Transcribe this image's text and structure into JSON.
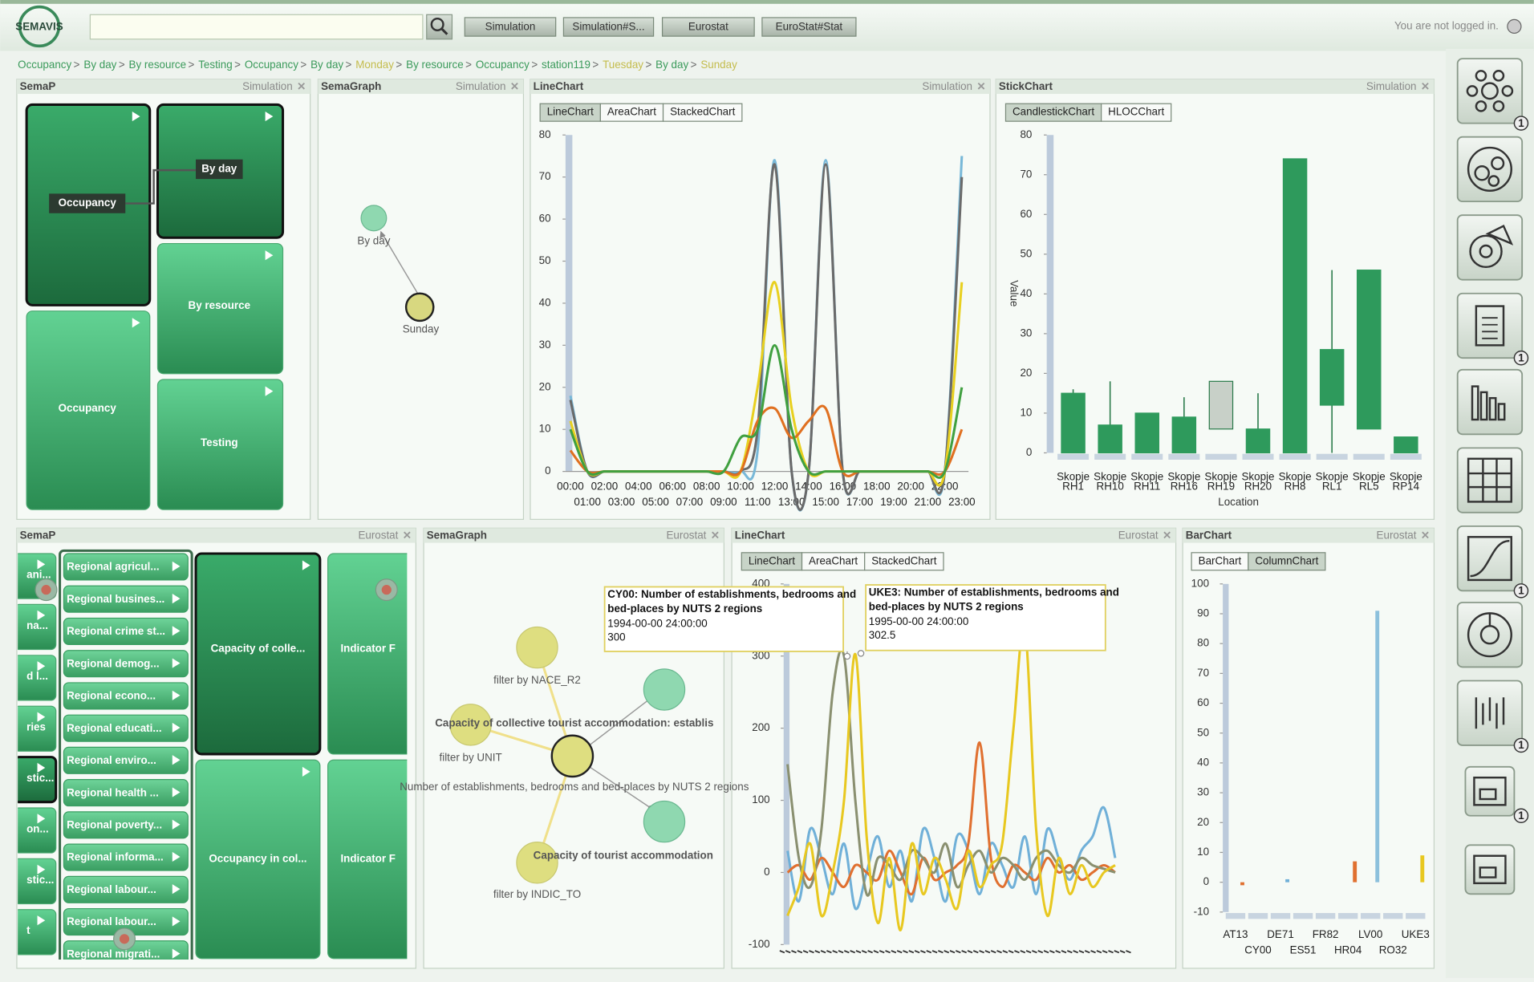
{
  "header": {
    "logo": "SEMAVIS",
    "buttons": [
      "Simulation",
      "Simulation#S...",
      "Eurostat",
      "EuroStat#Stat"
    ],
    "login": "You are not logged in."
  },
  "breadcrumb_separator": ">",
  "breadcrumb": [
    {
      "label": "Occupancy",
      "color": "#3a9a5a"
    },
    {
      "label": "By day",
      "color": "#3a9a5a"
    },
    {
      "label": "By resource",
      "color": "#3a9a5a"
    },
    {
      "label": "Testing",
      "color": "#3a9a5a"
    },
    {
      "label": "Occupancy",
      "color": "#3a9a5a"
    },
    {
      "label": "By day",
      "color": "#3a9a5a"
    },
    {
      "label": "Monday",
      "color": "#c4bc4c"
    },
    {
      "label": "By resource",
      "color": "#3a9a5a"
    },
    {
      "label": "Occupancy",
      "color": "#3a9a5a"
    },
    {
      "label": "station119",
      "color": "#3a9a5a"
    },
    {
      "label": "Tuesday",
      "color": "#c4bc4c"
    },
    {
      "label": "By day",
      "color": "#3a9a5a"
    },
    {
      "label": "Sunday",
      "color": "#c4bc4c"
    }
  ],
  "panels": [
    {
      "title": "SemaP",
      "source": "Simulation"
    },
    {
      "title": "SemaGraph",
      "source": "Simulation"
    },
    {
      "title": "LineChart",
      "source": "Simulation"
    },
    {
      "title": "StickChart",
      "source": "Simulation"
    },
    {
      "title": "SemaP",
      "source": "Eurostat"
    },
    {
      "title": "SemaGraph",
      "source": "Eurostat"
    },
    {
      "title": "LineChart",
      "source": "Eurostat"
    },
    {
      "title": "BarChart",
      "source": "Eurostat"
    }
  ],
  "semap_top": {
    "tiles": [
      "Occupancy",
      "By day",
      "By resource",
      "Occupancy",
      "Testing"
    ]
  },
  "semagraph_top": {
    "nodes": [
      "By day",
      "Sunday"
    ]
  },
  "semap_bottom": {
    "side_tiles": [
      "ani...",
      "na...",
      "d l...",
      "ries",
      "stic...",
      "on...",
      "stic...",
      "t"
    ],
    "list": [
      "Regional agricul...",
      "Regional busines...",
      "Regional crime st...",
      "Regional demog...",
      "Regional econo...",
      "Regional educati...",
      "Regional enviro...",
      "Regional health ...",
      "Regional poverty...",
      "Regional informa...",
      "Regional labour...",
      "Regional labour...",
      "Regional migrati..."
    ],
    "tiles": [
      "Capacity of colle...",
      "Occupancy in col...",
      "Indicator F",
      "Indicator F"
    ]
  },
  "semagraph_bottom": {
    "filters": [
      "filter by NACE_R2",
      "filter by UNIT",
      "filter by INDIC_TO"
    ],
    "labels": [
      "Capacity of collective tourist accommodation: establis",
      "Number of establishments, bedrooms and bed-places by NUTS 2 regions",
      "Capacity of tourist accommodation"
    ]
  },
  "sidebar_badges": [
    "1",
    "1",
    "1",
    "1",
    "1"
  ],
  "chart_data": [
    {
      "type": "line",
      "tabs": [
        "LineChart",
        "AreaChart",
        "StackedChart"
      ],
      "x": [
        "00:00",
        "01:00",
        "02:00",
        "03:00",
        "04:00",
        "05:00",
        "06:00",
        "07:00",
        "08:00",
        "09:00",
        "10:00",
        "11:00",
        "12:00",
        "13:00",
        "14:00",
        "15:00",
        "16:00",
        "17:00",
        "18:00",
        "19:00",
        "20:00",
        "21:00",
        "22:00",
        "23:00"
      ],
      "ylim": [
        0,
        80
      ],
      "yticks": [
        0,
        10,
        20,
        30,
        40,
        50,
        60,
        70,
        80
      ],
      "series": [
        {
          "color": "#78b8d8",
          "values": [
            18,
            0,
            0,
            0,
            0,
            0,
            0,
            0,
            0,
            0,
            0,
            5,
            74,
            0,
            0,
            74,
            0,
            0,
            0,
            0,
            0,
            0,
            0,
            75
          ]
        },
        {
          "color": "#6a6a6a",
          "values": [
            17,
            0,
            0,
            0,
            0,
            0,
            0,
            0,
            0,
            0,
            0,
            10,
            73,
            0,
            0,
            73,
            0,
            0,
            0,
            0,
            0,
            0,
            0,
            70
          ]
        },
        {
          "color": "#e8d020",
          "values": [
            12,
            0,
            0,
            0,
            0,
            0,
            0,
            0,
            0,
            0,
            0,
            20,
            45,
            15,
            0,
            0,
            0,
            0,
            0,
            0,
            0,
            0,
            0,
            45
          ]
        },
        {
          "color": "#e07020",
          "values": [
            5,
            0,
            0,
            0,
            0,
            0,
            0,
            0,
            0,
            0,
            0,
            12,
            15,
            8,
            12,
            15,
            0,
            0,
            0,
            0,
            0,
            0,
            0,
            10
          ]
        },
        {
          "color": "#40a040",
          "values": [
            10,
            0,
            0,
            0,
            0,
            0,
            0,
            0,
            0,
            0,
            8,
            10,
            30,
            10,
            0,
            0,
            0,
            0,
            0,
            0,
            0,
            0,
            0,
            20
          ]
        }
      ]
    },
    {
      "type": "candlestick",
      "tabs": [
        "CandlestickChart",
        "HLOCChart"
      ],
      "categories": [
        [
          "Skopje",
          "RH1"
        ],
        [
          "Skopje",
          "RH10"
        ],
        [
          "Skopje",
          "RH11"
        ],
        [
          "Skopje",
          "RH16"
        ],
        [
          "Skopje",
          "RH19"
        ],
        [
          "Skopje",
          "RH20"
        ],
        [
          "Skopje",
          "RH8"
        ],
        [
          "Skopje",
          "RL1"
        ],
        [
          "Skopje",
          "RL5"
        ],
        [
          "Skopje",
          "RP14"
        ]
      ],
      "open": [
        0,
        0,
        0,
        0,
        18,
        0,
        0,
        12,
        6,
        0
      ],
      "close": [
        15,
        7,
        10,
        9,
        6,
        6,
        74,
        26,
        46,
        4
      ],
      "high": [
        16,
        18,
        10,
        14,
        18,
        15,
        74,
        46,
        46,
        4
      ],
      "low": [
        0,
        0,
        0,
        0,
        6,
        0,
        0,
        0,
        6,
        0
      ],
      "color": "#2e9a5c",
      "down_color": "#c8d0c8",
      "ylabel": "Value",
      "xlabel": "Location",
      "ylim": [
        0,
        80
      ],
      "yticks": [
        0,
        10,
        20,
        30,
        40,
        50,
        60,
        70,
        80
      ]
    },
    {
      "type": "line",
      "tabs": [
        "LineChart",
        "AreaChart",
        "StackedChart"
      ],
      "ylim": [
        -100,
        400
      ],
      "yticks": [
        -100,
        0,
        100,
        200,
        300,
        400
      ],
      "series": [
        {
          "color": "#70b0d8",
          "values": [
            30,
            -40,
            60,
            20,
            -30,
            40,
            -50,
            0,
            50,
            -20,
            30,
            -40,
            60,
            20,
            -40,
            50,
            30,
            -30,
            40,
            10,
            -20,
            50,
            -30,
            60,
            20,
            -10,
            30,
            50,
            90,
            20
          ]
        },
        {
          "color": "#e07030",
          "values": [
            0,
            10,
            -10,
            20,
            0,
            -20,
            10,
            0,
            -10,
            30,
            0,
            -30,
            20,
            -10,
            0,
            10,
            40,
            180,
            20,
            -20,
            10,
            0,
            -10,
            20,
            0,
            10,
            -10,
            0,
            10,
            0
          ]
        },
        {
          "name": "CY00",
          "color": "#8a9070",
          "values": [
            150,
            20,
            -20,
            60,
            250,
            300,
            100,
            -30,
            20,
            10,
            -10,
            30,
            20,
            0,
            40,
            -20,
            10,
            30,
            0,
            20,
            10,
            -10,
            20,
            30,
            10,
            0,
            20,
            10,
            5,
            0
          ]
        },
        {
          "name": "UKE3",
          "color": "#e8c820",
          "values": [
            -60,
            -20,
            40,
            -60,
            0,
            100,
            302.5,
            50,
            -70,
            20,
            -80,
            40,
            -30,
            20,
            -10,
            -50,
            30,
            -20,
            10,
            40,
            200,
            340,
            60,
            -60,
            20,
            -30,
            10,
            -20,
            0,
            10
          ]
        }
      ],
      "tooltips": [
        {
          "title_lines": [
            "CY00: Number of establishments, bedrooms and",
            "bed-places by NUTS 2 regions"
          ],
          "date": "1994-00-00 24:00:00",
          "value": 300
        },
        {
          "title_lines": [
            "UKE3: Number of establishments, bedrooms and",
            "bed-places by NUTS 2 regions"
          ],
          "date": "1995-00-00 24:00:00",
          "value": 302.5
        }
      ]
    },
    {
      "type": "bar",
      "tabs": [
        "BarChart",
        "ColumnChart"
      ],
      "categories": [
        "AT13",
        "CY00",
        "DE71",
        "ES51",
        "FR82",
        "HR04",
        "LV00",
        "RO32",
        "UKE3"
      ],
      "values": [
        -1,
        0,
        1,
        0,
        0,
        7,
        91,
        0,
        9
      ],
      "colors": [
        "#e07030",
        "#8a9070",
        "#70b0d8",
        "#70b0d8",
        "#70b0d8",
        "#e07030",
        "#8cc0dc",
        "#70b0d8",
        "#e8c820"
      ],
      "ylim": [
        -10,
        100
      ],
      "yticks": [
        -10,
        0,
        10,
        20,
        30,
        40,
        50,
        60,
        70,
        80,
        90,
        100
      ]
    }
  ]
}
